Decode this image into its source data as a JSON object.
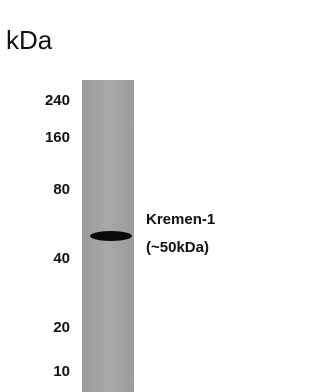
{
  "unit_label": "kDa",
  "markers": [
    240,
    160,
    80,
    40,
    20,
    10
  ],
  "band": {
    "name": "Kremen-1",
    "size": "(~50kDa)"
  }
}
